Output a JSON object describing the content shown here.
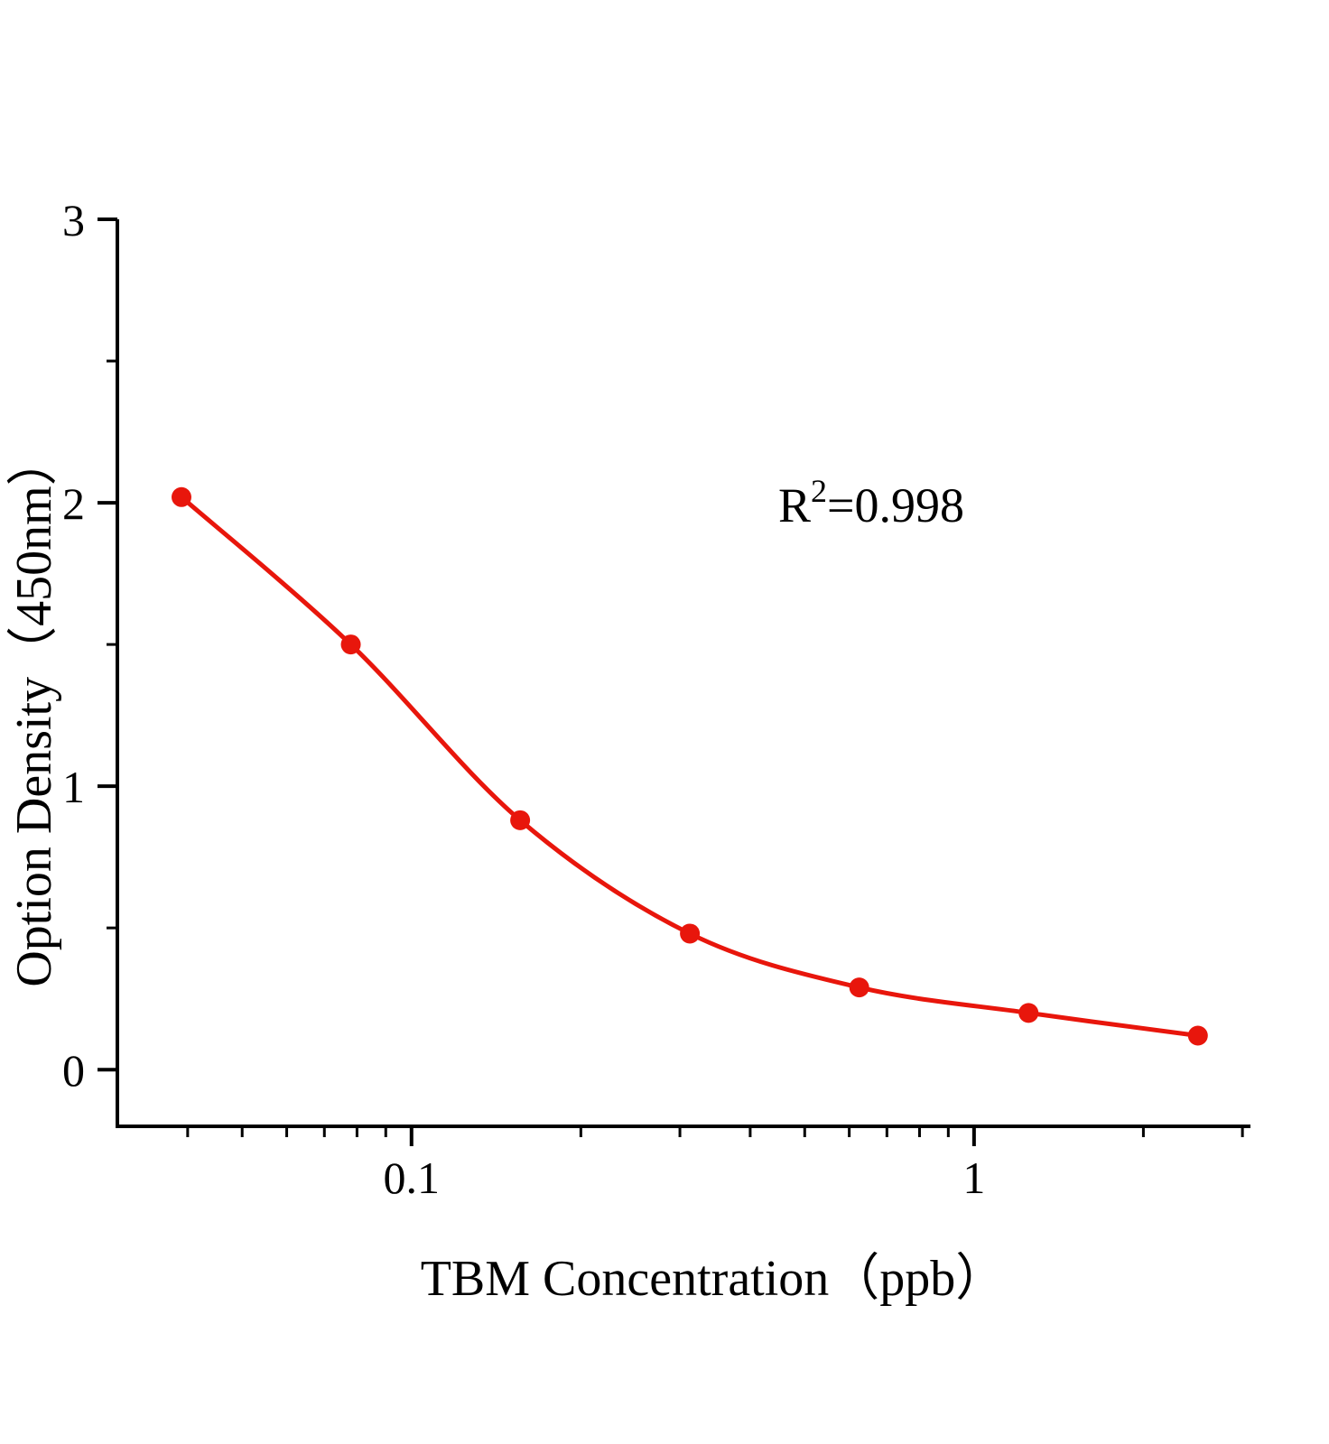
{
  "chart_data": {
    "type": "scatter",
    "fit": "smooth sigmoidal standard curve through points (log-x)",
    "x": [
      0.039,
      0.078,
      0.156,
      0.3125,
      0.625,
      1.25,
      2.5
    ],
    "y": [
      2.02,
      1.5,
      0.88,
      0.48,
      0.29,
      0.2,
      0.12
    ],
    "title": "",
    "xlabel": "TBM Concentration（ppb）",
    "ylabel": "Option Density（450nm）",
    "annotation": {
      "base": "R",
      "sup": "2",
      "rest": "=0.998"
    },
    "x_scale": "log10",
    "xlim": [
      0.03,
      3.1
    ],
    "ylim": [
      -0.2,
      3
    ],
    "x_major_ticks": [
      0.1,
      1
    ],
    "x_major_tick_labels": [
      "0.1",
      "1"
    ],
    "x_minor_ticks": [
      0.04,
      0.05,
      0.06,
      0.07,
      0.08,
      0.09,
      0.2,
      0.3,
      0.4,
      0.5,
      0.6,
      0.7,
      0.8,
      0.9,
      2,
      3
    ],
    "y_major_ticks": [
      0,
      1,
      2,
      3
    ],
    "y_major_tick_labels": [
      "0",
      "1",
      "2",
      "3"
    ],
    "y_minor_ticks": [
      0.5,
      1.5,
      2.5
    ],
    "grid": false,
    "legend": false,
    "colors": {
      "series": "#e8160c",
      "axis": "#000000",
      "background": "#ffffff"
    }
  }
}
